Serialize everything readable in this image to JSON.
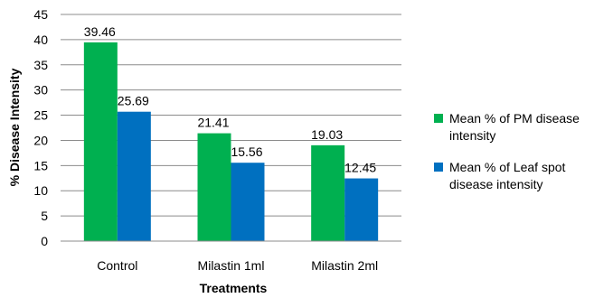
{
  "chart_data": {
    "type": "bar",
    "title": "",
    "xlabel": "Treatments",
    "ylabel": "% Disease Intensity",
    "ylim": [
      0,
      45
    ],
    "yticks": [
      0,
      5,
      10,
      15,
      20,
      25,
      30,
      35,
      40,
      45
    ],
    "categories": [
      "Control",
      "Milastin 1ml",
      "Milastin 2ml"
    ],
    "series": [
      {
        "name": "Mean % of PM disease intensity",
        "color": "#00b050",
        "values": [
          39.46,
          21.41,
          19.03
        ]
      },
      {
        "name": "Mean % of Leaf spot disease intensity",
        "color": "#0070c0",
        "values": [
          25.69,
          15.56,
          12.45
        ]
      }
    ],
    "data_labels": true,
    "grid": true,
    "legend_position": "right"
  },
  "legend": {
    "items": [
      {
        "line1": "Mean % of PM disease",
        "line2": "intensity"
      },
      {
        "line1": "Mean % of Leaf spot",
        "line2": "disease intensity"
      }
    ]
  }
}
